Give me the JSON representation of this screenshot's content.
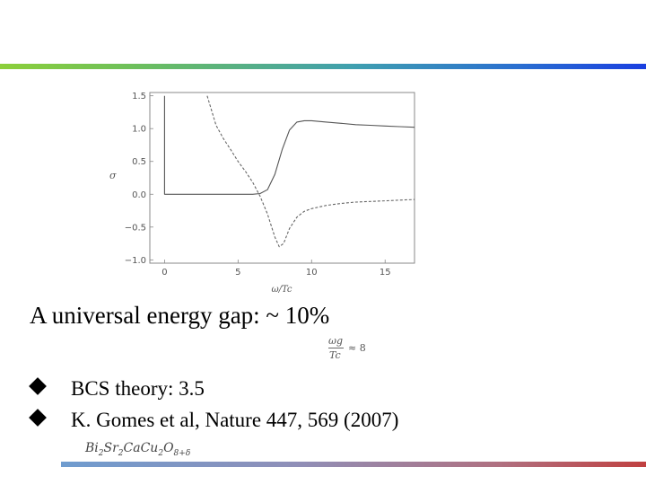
{
  "slide": {
    "headline": "A universal energy gap: ~ 10%",
    "formula": {
      "numerator": "ωg",
      "denominator": "Tc",
      "relation": "≈ 8"
    },
    "bullets": [
      "BCS theory:  3.5",
      "K. Gomes et al, Nature 447, 569  (2007)"
    ],
    "compound": "Bi2Sr2CaCu2O8+δ"
  },
  "colors": {
    "top_bar_start": "#8ccf3a",
    "top_bar_end": "#1a3fe0",
    "bottom_bar_start": "#6f9ccf",
    "bottom_bar_end": "#c04040"
  },
  "chart_data": {
    "type": "line",
    "xlabel": "ω/Tc",
    "ylabel": "σ",
    "xlim": [
      -1,
      17
    ],
    "ylim": [
      -1.05,
      1.55
    ],
    "x_ticks": [
      0,
      5,
      10,
      15
    ],
    "y_ticks": [
      -1.0,
      -0.5,
      0.0,
      0.5,
      1.0,
      1.5
    ],
    "x_tick_labels": [
      "0",
      "5",
      "10",
      "15"
    ],
    "y_tick_labels": [
      "−1.0",
      "−0.5",
      "0.0",
      "0.5",
      "1.0",
      "1.5"
    ],
    "grid": false,
    "series": [
      {
        "style": "solid",
        "x": [
          0,
          0,
          6.0,
          6.5,
          7.0,
          7.5,
          8.0,
          8.5,
          9.0,
          9.5,
          10.0,
          11.0,
          12.0,
          13.0,
          14.0,
          15.0,
          16.0,
          17.0
        ],
        "y": [
          1.5,
          0.0,
          0.0,
          0.01,
          0.07,
          0.3,
          0.68,
          0.98,
          1.1,
          1.12,
          1.12,
          1.1,
          1.08,
          1.06,
          1.05,
          1.04,
          1.03,
          1.02
        ]
      },
      {
        "style": "dashed",
        "x": [
          2.9,
          3.5,
          4.0,
          4.5,
          5.0,
          5.5,
          6.0,
          6.5,
          7.0,
          7.5,
          7.8,
          8.1,
          8.5,
          9.0,
          9.5,
          10.0,
          11.0,
          12.0,
          13.0,
          14.0,
          15.0,
          16.0,
          17.0
        ],
        "y": [
          1.5,
          1.05,
          0.85,
          0.68,
          0.5,
          0.35,
          0.18,
          -0.03,
          -0.3,
          -0.65,
          -0.8,
          -0.75,
          -0.52,
          -0.35,
          -0.26,
          -0.22,
          -0.17,
          -0.14,
          -0.12,
          -0.11,
          -0.1,
          -0.09,
          -0.08
        ]
      }
    ]
  }
}
